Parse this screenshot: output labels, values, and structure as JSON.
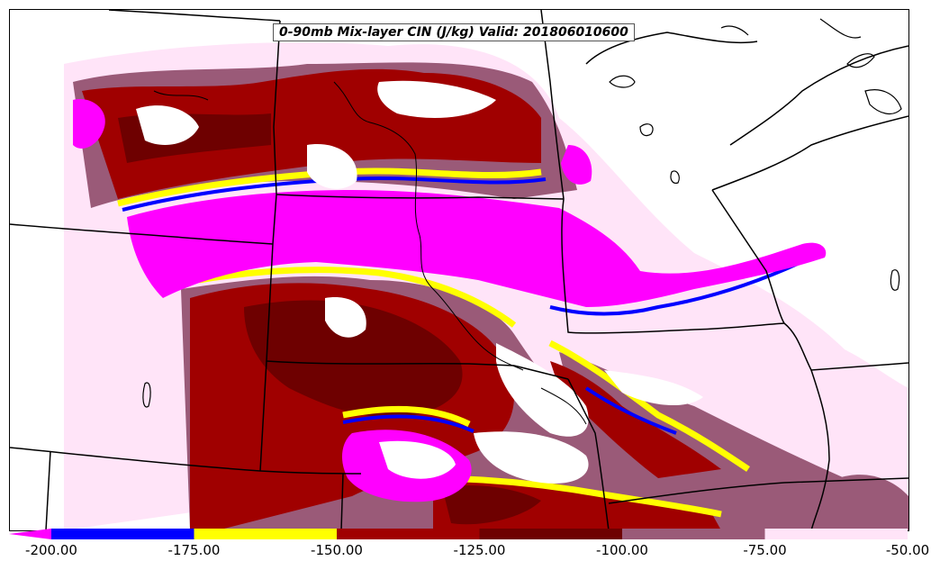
{
  "title": "0-90mb Mix-layer CIN (J/kg) Valid: 201806010600",
  "legend": {
    "ticks": [
      "-200.00",
      "-175.00",
      "-150.00",
      "-125.00",
      "-100.00",
      "-75.00",
      "-50.00"
    ],
    "bins": [
      {
        "from": -200,
        "to": -175,
        "color": "#0000ff"
      },
      {
        "from": -175,
        "to": -150,
        "color": "#ffff00"
      },
      {
        "from": -150,
        "to": -125,
        "color": "#a00000"
      },
      {
        "from": -125,
        "to": -100,
        "color": "#6e0000"
      },
      {
        "from": -100,
        "to": -75,
        "color": "#9a5a78"
      },
      {
        "from": -75,
        "to": -50,
        "color": "#ffe4f8"
      }
    ],
    "underflow_color": "#ff00ff"
  },
  "colors": {
    "below_min": "#ff00ff",
    "blue": "#0000ff",
    "yellow": "#ffff00",
    "red": "#a00000",
    "dark_red": "#6e0000",
    "mauve": "#9a5a78",
    "pink": "#ffe4f8"
  }
}
